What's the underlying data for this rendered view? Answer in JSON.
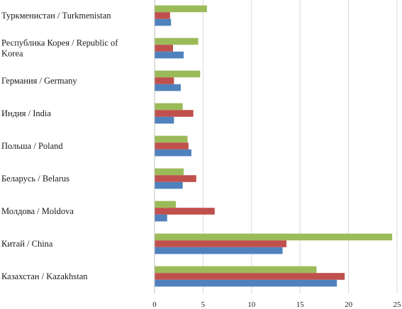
{
  "chart_data": {
    "type": "bar",
    "orientation": "horizontal",
    "categories": [
      [
        "Туркменистан / Turkmenistan"
      ],
      [
        "Республика Корея / Republic of",
        "Korea"
      ],
      [
        "Германия / Germany"
      ],
      [
        "Индия / India"
      ],
      [
        "Польша / Poland"
      ],
      [
        "Беларусь / Belarus"
      ],
      [
        "Молдова / Moldova"
      ],
      [
        "Китай / China"
      ],
      [
        "Казахстан / Kazakhstan"
      ]
    ],
    "series": [
      {
        "color": "#9bbb59",
        "values": [
          5.4,
          4.5,
          4.7,
          2.9,
          3.4,
          3.0,
          2.2,
          24.5,
          16.7
        ]
      },
      {
        "color": "#c0504d",
        "values": [
          1.6,
          1.9,
          2.0,
          4.0,
          3.5,
          4.3,
          6.2,
          13.6,
          19.6
        ]
      },
      {
        "color": "#4f81bd",
        "values": [
          1.7,
          3.0,
          2.7,
          2.0,
          3.8,
          2.9,
          1.3,
          13.2,
          18.8
        ]
      }
    ],
    "xlim": [
      0,
      25
    ],
    "xticks": [
      0,
      5,
      10,
      15,
      20,
      25
    ],
    "grid": true,
    "legend": "none",
    "title": "",
    "xlabel": "",
    "ylabel": ""
  }
}
